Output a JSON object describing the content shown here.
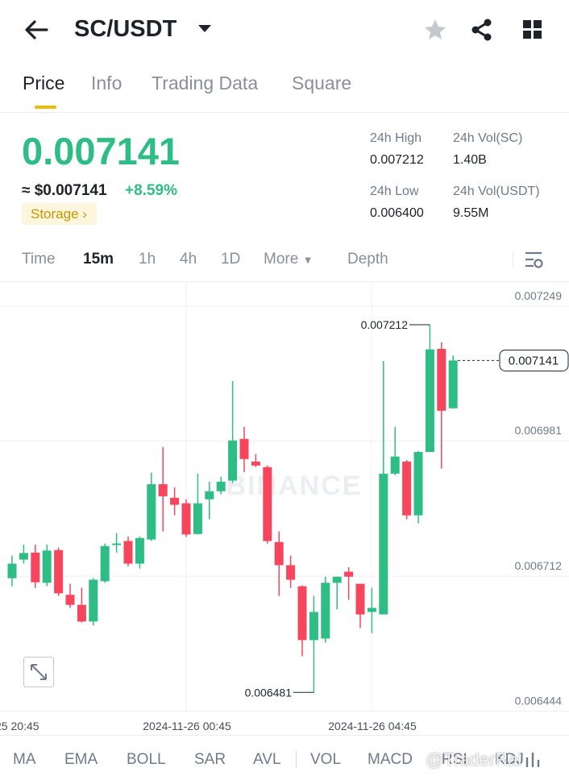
{
  "header": {
    "pair": "SC/USDT"
  },
  "tabs": [
    "Price",
    "Info",
    "Trading Data",
    "Square"
  ],
  "price": {
    "last": "0.007141",
    "usd": "≈ $0.007141",
    "change": "+8.59%",
    "tag": "Storage"
  },
  "stats": [
    {
      "label": "24h High",
      "value": "0.007212"
    },
    {
      "label": "24h Vol(SC)",
      "value": "1.40B"
    },
    {
      "label": "24h Low",
      "value": "0.006400"
    },
    {
      "label": "24h Vol(USDT)",
      "value": "9.55M"
    }
  ],
  "intervals": [
    "Time",
    "15m",
    "1h",
    "4h",
    "1D",
    "More",
    "Depth"
  ],
  "chart": {
    "type": "candlestick",
    "watermark": "BINANCE",
    "up_color": "#2ebd85",
    "down_color": "#f6465d",
    "ylim": [
      0.006443,
      0.007297
    ],
    "yticks": [
      0.006444,
      0.006712,
      0.006981,
      0.007249
    ],
    "x_tick_labels": [
      "25 20:45",
      "2024-11-26 00:45",
      "2024-11-26 04:45"
    ],
    "open": [
      0.006708,
      0.006745,
      0.006759,
      0.006699,
      0.006764,
      0.006675,
      0.006655,
      0.006622,
      0.006702,
      0.006774,
      0.006782,
      0.006737,
      0.006785,
      0.006895,
      0.006868,
      0.006857,
      0.006796,
      0.006865,
      0.006881,
      0.006902,
      0.006985,
      0.00694,
      0.006929,
      0.00678,
      0.006734,
      0.006692,
      0.006585,
      0.006588,
      0.006699,
      0.006721,
      0.006697,
      0.006641,
      0.006636,
      0.006916,
      0.00694,
      0.006833,
      0.006959,
      0.007164,
      0.007046
    ],
    "high": [
      0.006753,
      0.006775,
      0.006775,
      0.006775,
      0.006769,
      0.006697,
      0.006689,
      0.006708,
      0.006777,
      0.006798,
      0.006791,
      0.006791,
      0.006918,
      0.006969,
      0.006889,
      0.006865,
      0.006916,
      0.0069,
      0.00691,
      0.0071,
      0.007009,
      0.006955,
      0.006932,
      0.006801,
      0.006753,
      0.006694,
      0.006673,
      0.006711,
      0.006711,
      0.00673,
      0.006697,
      0.006689,
      0.00714,
      0.007009,
      0.006943,
      0.006961,
      0.007212,
      0.007177,
      0.007151
    ],
    "low": [
      0.006692,
      0.006737,
      0.006689,
      0.006692,
      0.006673,
      0.006649,
      0.00662,
      0.006614,
      0.006699,
      0.006759,
      0.006732,
      0.006727,
      0.006782,
      0.006801,
      0.006833,
      0.00679,
      0.006795,
      0.006825,
      0.006875,
      0.006897,
      0.006919,
      0.006929,
      0.006777,
      0.006673,
      0.006689,
      0.006553,
      0.006481,
      0.00658,
      0.006646,
      0.006665,
      0.006609,
      0.006599,
      0.006636,
      0.006913,
      0.006825,
      0.006817,
      0.006959,
      0.006926,
      0.007045
    ],
    "close": [
      0.006737,
      0.006758,
      0.0067,
      0.006763,
      0.006678,
      0.006655,
      0.006622,
      0.006705,
      0.006772,
      0.006777,
      0.006737,
      0.006788,
      0.006895,
      0.006871,
      0.006854,
      0.006795,
      0.006857,
      0.006881,
      0.0069,
      0.006982,
      0.006945,
      0.006932,
      0.006782,
      0.006734,
      0.006705,
      0.006585,
      0.006641,
      0.006699,
      0.006711,
      0.006711,
      0.006636,
      0.006649,
      0.006916,
      0.00695,
      0.006833,
      0.006959,
      0.007163,
      0.007041,
      0.007141
    ],
    "high_marker": 0.007212,
    "low_marker": 0.006481,
    "last_price": 0.007141
  },
  "indicators": [
    "MA",
    "EMA",
    "BOLL",
    "SAR",
    "AVL",
    "VOL",
    "MACD",
    "RSI",
    "KDJ"
  ],
  "watermark": "@TraderRai"
}
